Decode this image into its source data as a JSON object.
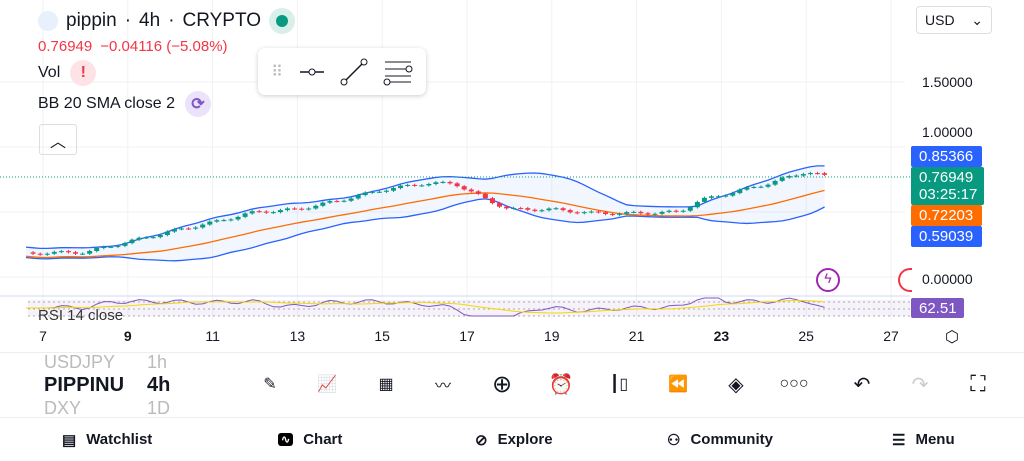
{
  "header": {
    "symbol": "pippin",
    "interval": "4h",
    "exchange": "CRYPTO",
    "separator": "·",
    "price": "0.76949",
    "change": "−0.04116 (−5.08%)",
    "currency": "USD"
  },
  "indicators": {
    "vol": "Vol",
    "bb": "BB 20 SMA close 2",
    "rsi": "RSI 14 close"
  },
  "price_axis": {
    "labels": [
      "1.50000",
      "1.00000",
      "0.00000"
    ]
  },
  "tags": {
    "bb_upper": "0.85366",
    "last": "0.76949",
    "countdown": "03:25:17",
    "bb_basis": "0.72203",
    "bb_lower": "0.59039",
    "rsi": "62.51"
  },
  "time_axis": [
    {
      "t": "7",
      "bold": false
    },
    {
      "t": "9",
      "bold": true
    },
    {
      "t": "11",
      "bold": false
    },
    {
      "t": "13",
      "bold": false
    },
    {
      "t": "15",
      "bold": false
    },
    {
      "t": "17",
      "bold": false
    },
    {
      "t": "19",
      "bold": false
    },
    {
      "t": "21",
      "bold": false
    },
    {
      "t": "23",
      "bold": true
    },
    {
      "t": "25",
      "bold": false
    },
    {
      "t": "27",
      "bold": false
    }
  ],
  "symbol_picker": {
    "prev": "USDJPY",
    "prev_tf": "1h",
    "current": "PIPPINU",
    "current_tf": "4h",
    "next": "DXY",
    "next_tf": "1D"
  },
  "nav": {
    "watchlist": "Watchlist",
    "chart": "Chart",
    "explore": "Explore",
    "community": "Community",
    "menu": "Menu"
  },
  "colors": {
    "up": "#089981",
    "down": "#f23645",
    "bb": "#2962ff",
    "basis": "#ff6d00",
    "rsi": "#7e57c2"
  },
  "chart_data": {
    "type": "candlestick",
    "interval": "4h",
    "x_days": [
      6.6,
      7,
      8,
      9,
      10,
      11,
      12,
      13,
      14,
      15,
      16,
      16.7,
      17.5,
      18,
      19,
      20,
      21,
      22,
      22.5,
      23,
      24,
      24.5,
      25,
      25.5
    ],
    "close": [
      0.18,
      0.185,
      0.19,
      0.27,
      0.35,
      0.42,
      0.5,
      0.52,
      0.59,
      0.67,
      0.72,
      0.72,
      0.59,
      0.52,
      0.52,
      0.49,
      0.49,
      0.5,
      0.59,
      0.63,
      0.71,
      0.76,
      0.81,
      0.77
    ],
    "ylim": [
      0,
      1.6
    ]
  }
}
